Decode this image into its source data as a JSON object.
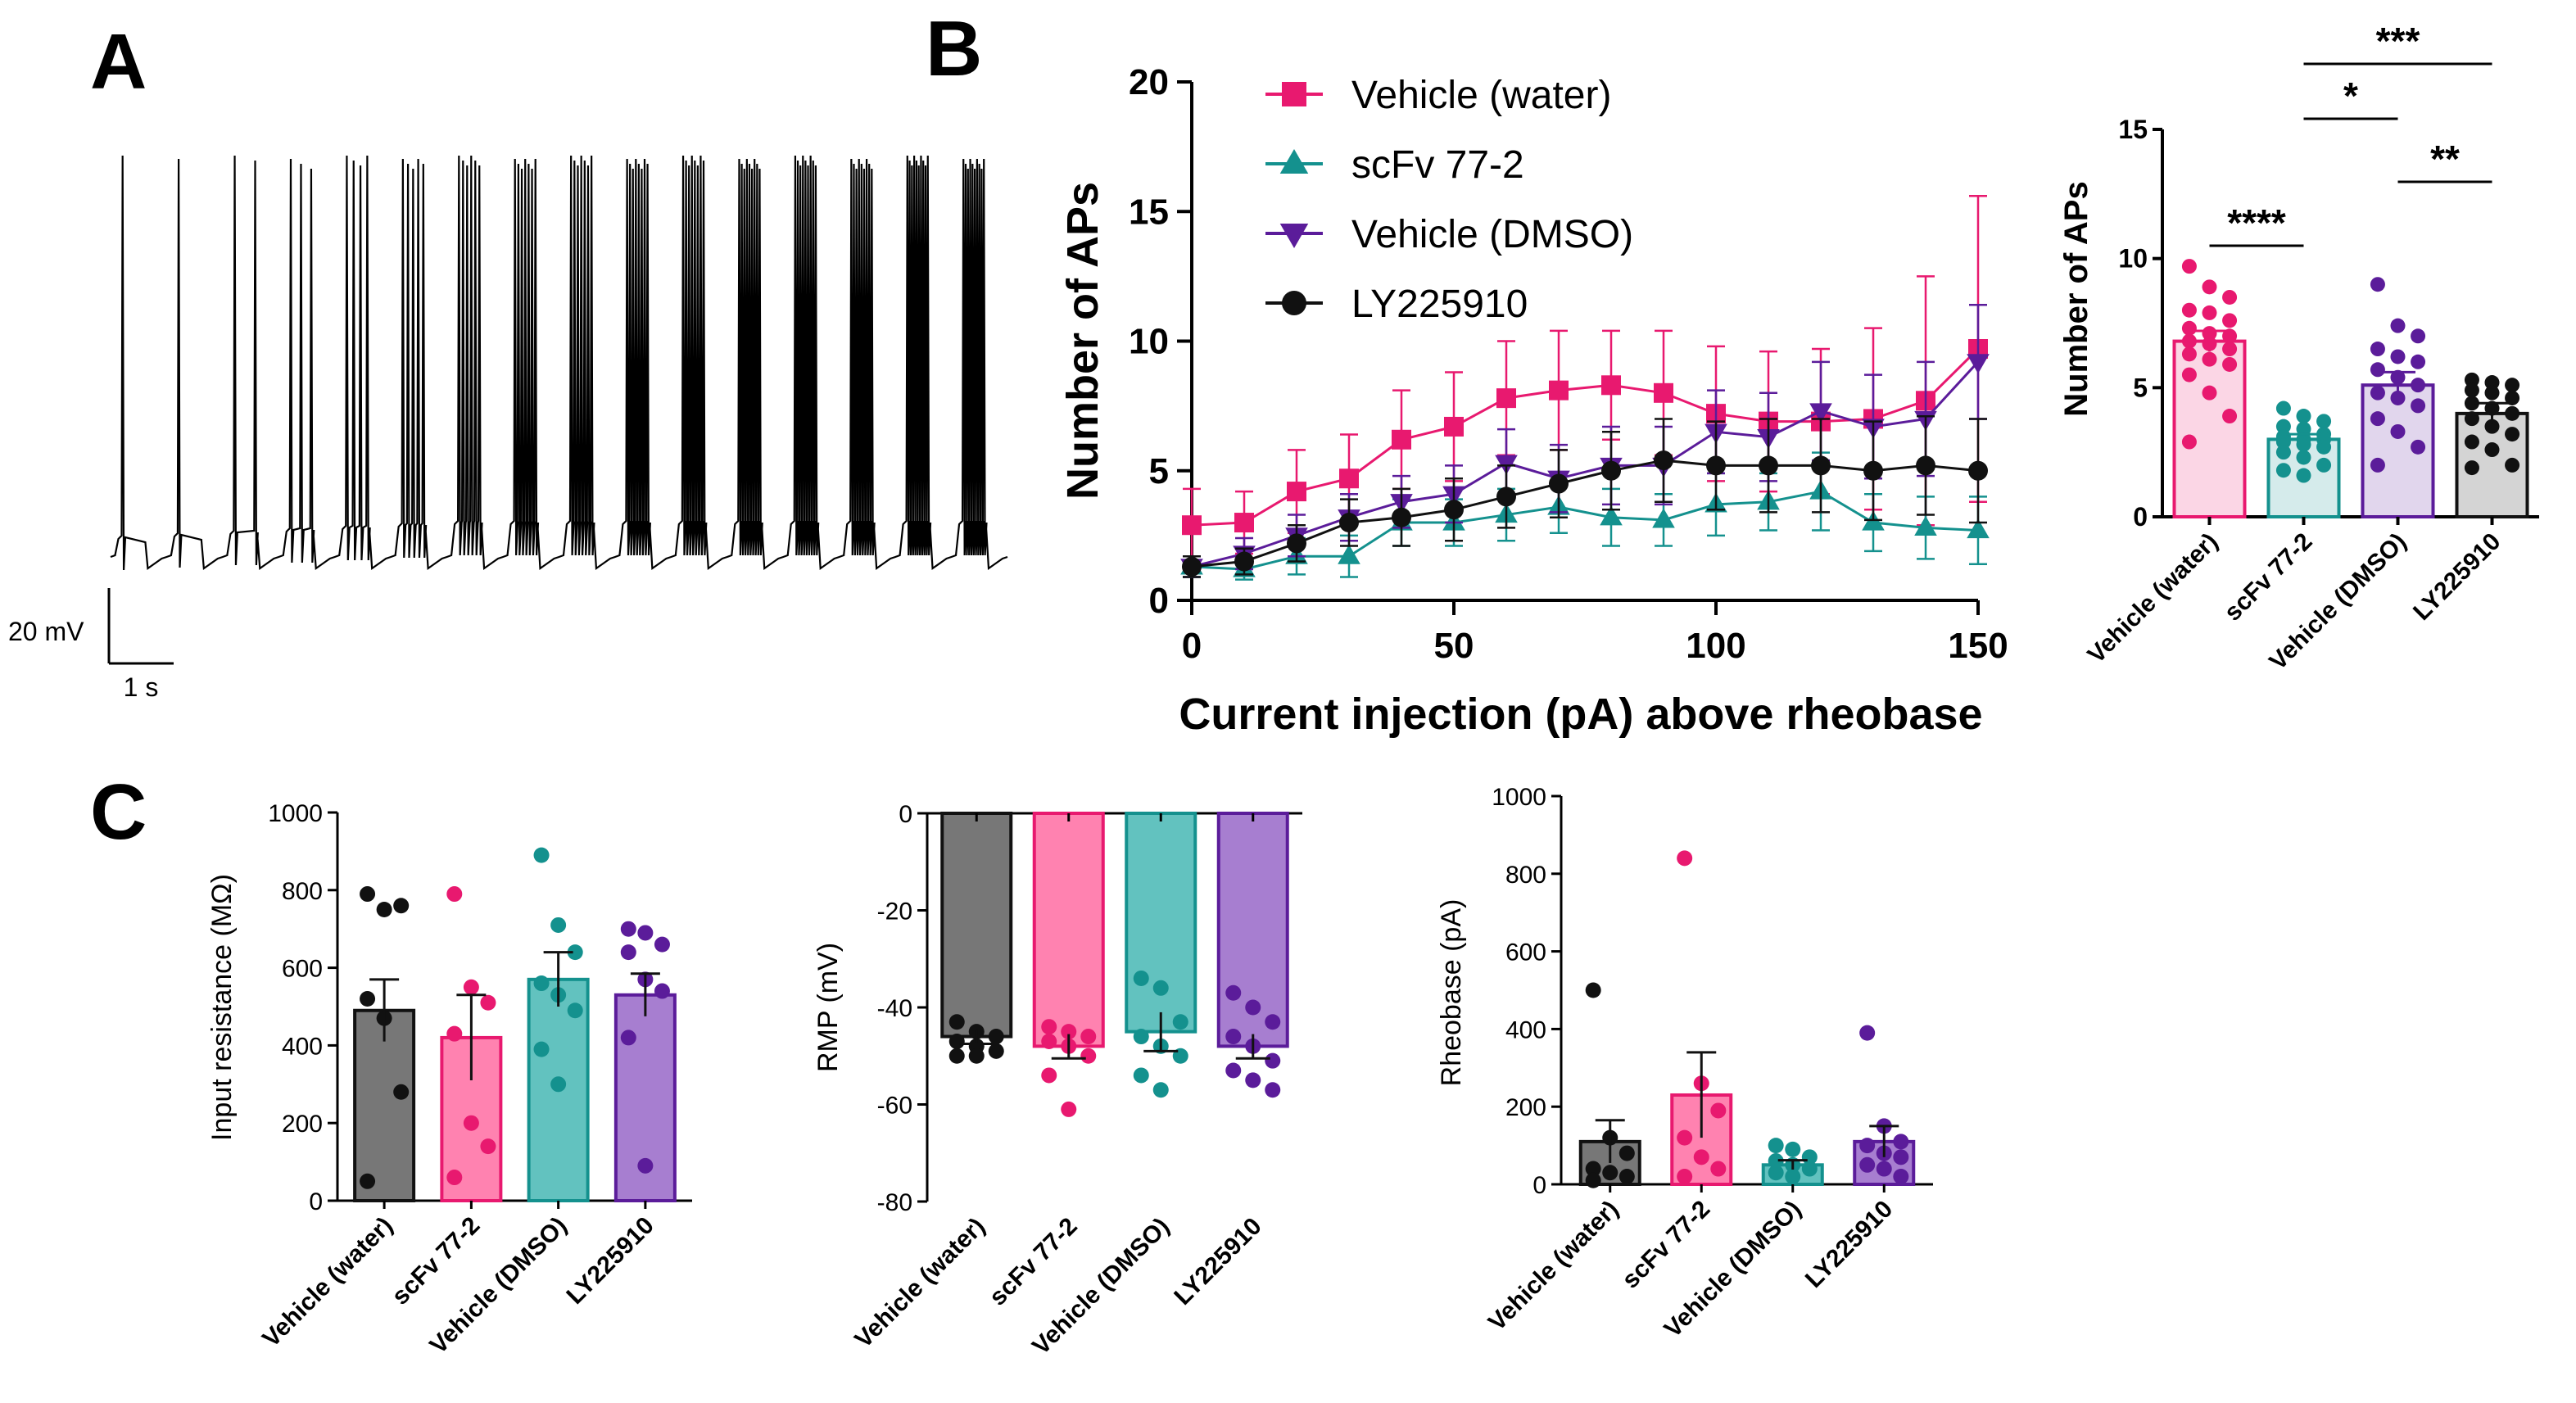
{
  "panels": {
    "a": "A",
    "b": "B",
    "c": "C"
  },
  "groups": [
    "Vehicle (water)",
    "scFv 77-2",
    "Vehicle (DMSO)",
    "LY225910"
  ],
  "group_colors": [
    "#e8196f",
    "#14918e",
    "#5b1c9a",
    "#111111"
  ],
  "chart_data": [
    {
      "id": "trace",
      "type": "line",
      "title": "",
      "scalebar": {
        "voltage_label": "20 mV",
        "time_label": "1 s"
      },
      "steps": [
        1,
        2,
        3,
        4,
        5,
        6,
        7,
        8,
        9,
        10,
        11,
        12,
        13,
        14,
        15,
        16
      ],
      "spikes_per_step": [
        1,
        1,
        2,
        3,
        4,
        5,
        6,
        7,
        7,
        8,
        8,
        9,
        9,
        9,
        10,
        10
      ]
    },
    {
      "id": "aps_line",
      "type": "line",
      "xlabel": "Current injection (pA) above rheobase",
      "ylabel": "Number of APs",
      "xlim": [
        0,
        150
      ],
      "ylim": [
        0,
        20
      ],
      "xticks": [
        0,
        50,
        100,
        150
      ],
      "yticks": [
        0,
        5,
        10,
        15,
        20
      ],
      "x": [
        0,
        10,
        20,
        30,
        40,
        50,
        60,
        70,
        80,
        90,
        100,
        110,
        120,
        130,
        140,
        150
      ],
      "series": [
        {
          "name": "Vehicle (water)",
          "color": "#e8196f",
          "marker": "square",
          "values": [
            2.9,
            3.0,
            4.2,
            4.7,
            6.2,
            6.7,
            7.8,
            8.1,
            8.3,
            8.0,
            7.2,
            6.9,
            6.9,
            7.0,
            7.7,
            9.7
          ],
          "errors": [
            1.4,
            1.2,
            1.6,
            1.7,
            1.9,
            2.1,
            2.2,
            2.3,
            2.1,
            2.4,
            2.6,
            2.7,
            2.8,
            3.5,
            4.8,
            5.9
          ]
        },
        {
          "name": "scFv 77-2",
          "color": "#14918e",
          "marker": "triangle-up",
          "values": [
            1.3,
            1.2,
            1.7,
            1.7,
            3.0,
            3.0,
            3.3,
            3.6,
            3.2,
            3.1,
            3.7,
            3.8,
            4.2,
            3.0,
            2.8,
            2.7
          ],
          "errors": [
            0.4,
            0.4,
            0.7,
            0.8,
            0.9,
            0.9,
            1.0,
            1.0,
            1.1,
            1.0,
            1.2,
            1.1,
            1.5,
            1.1,
            1.2,
            1.3
          ]
        },
        {
          "name": "Vehicle (DMSO)",
          "color": "#5b1c9a",
          "marker": "triangle-down",
          "values": [
            1.3,
            1.8,
            2.5,
            3.2,
            3.8,
            4.1,
            5.3,
            4.7,
            5.2,
            5.2,
            6.5,
            6.3,
            7.3,
            6.7,
            7.0,
            9.2
          ],
          "errors": [
            0.4,
            0.6,
            0.8,
            0.9,
            1.0,
            1.1,
            1.3,
            1.3,
            1.5,
            1.5,
            1.6,
            1.7,
            1.9,
            2.0,
            2.2,
            2.2
          ]
        },
        {
          "name": "LY225910",
          "color": "#111111",
          "marker": "circle",
          "values": [
            1.3,
            1.5,
            2.2,
            3.0,
            3.2,
            3.5,
            4.0,
            4.5,
            5.0,
            5.4,
            5.2,
            5.2,
            5.2,
            5.0,
            5.2,
            5.0
          ],
          "errors": [
            0.4,
            0.5,
            0.7,
            0.9,
            1.1,
            1.2,
            1.2,
            1.3,
            1.5,
            1.6,
            1.7,
            1.8,
            1.8,
            1.9,
            1.9,
            2.0
          ]
        }
      ]
    },
    {
      "id": "aps_bar",
      "type": "bar",
      "ylabel": "Number of APs",
      "ylim": [
        0,
        15
      ],
      "yticks": [
        0,
        5,
        10,
        15
      ],
      "categories": [
        "Vehicle (water)",
        "scFv 77-2",
        "Vehicle (DMSO)",
        "LY225910"
      ],
      "values": [
        6.8,
        3.0,
        5.1,
        4.0
      ],
      "errors": [
        0.4,
        0.2,
        0.5,
        0.4
      ],
      "points": [
        [
          9.7,
          8.9,
          8.5,
          8.0,
          7.9,
          7.6,
          7.3,
          7.1,
          7.0,
          6.8,
          6.7,
          6.5,
          6.3,
          6.1,
          5.9,
          5.5,
          4.8,
          3.9,
          2.9
        ],
        [
          4.2,
          3.9,
          3.7,
          3.5,
          3.4,
          3.2,
          3.1,
          3.0,
          3.0,
          2.9,
          2.8,
          2.7,
          2.5,
          2.3,
          2.0,
          1.8,
          1.6
        ],
        [
          9.0,
          7.4,
          7.0,
          6.5,
          6.2,
          6.0,
          5.7,
          5.4,
          5.1,
          4.8,
          4.6,
          4.3,
          3.8,
          3.3,
          2.7,
          2.0
        ],
        [
          5.3,
          5.2,
          5.1,
          4.9,
          4.8,
          4.6,
          4.4,
          4.2,
          4.0,
          3.8,
          3.5,
          3.2,
          2.9,
          2.6,
          2.0,
          1.9
        ]
      ],
      "significance": [
        {
          "label": "***",
          "from": 1,
          "to": 3
        },
        {
          "label": "*",
          "from": 1,
          "to": 2
        },
        {
          "label": "**",
          "from": 2,
          "to": 3
        },
        {
          "label": "****",
          "from": 0,
          "to": 1
        }
      ]
    },
    {
      "id": "input_resistance",
      "type": "bar",
      "ylabel": "Input resistance (MΩ)",
      "ylim": [
        0,
        1000
      ],
      "yticks": [
        0,
        200,
        400,
        600,
        800,
        1000
      ],
      "categories": [
        "Vehicle (water)",
        "scFv 77-2",
        "Vehicle (DMSO)",
        "LY225910"
      ],
      "bar_colors": [
        "#111111",
        "#e8196f",
        "#14918e",
        "#5b1c9a"
      ],
      "values": [
        490,
        420,
        570,
        530
      ],
      "errors": [
        80,
        110,
        70,
        55
      ],
      "points": [
        [
          790,
          750,
          760,
          520,
          470,
          280,
          50
        ],
        [
          790,
          550,
          510,
          430,
          200,
          140,
          60
        ],
        [
          890,
          710,
          640,
          560,
          530,
          490,
          390,
          300
        ],
        [
          700,
          690,
          660,
          640,
          570,
          540,
          420,
          90
        ]
      ]
    },
    {
      "id": "rmp",
      "type": "bar",
      "ylabel": "RMP (mV)",
      "ylim": [
        -80,
        0
      ],
      "yticks": [
        0,
        -20,
        -40,
        -60,
        -80
      ],
      "categories": [
        "Vehicle (water)",
        "scFv 77-2",
        "Vehicle (DMSO)",
        "LY225910"
      ],
      "bar_colors": [
        "#111111",
        "#e8196f",
        "#14918e",
        "#5b1c9a"
      ],
      "values": [
        -46,
        -48,
        -45,
        -48
      ],
      "errors": [
        1.5,
        2.5,
        4.0,
        2.5
      ],
      "points": [
        [
          -43,
          -45,
          -46,
          -47,
          -48,
          -49,
          -50,
          -50
        ],
        [
          -44,
          -45,
          -46,
          -47,
          -48,
          -50,
          -54,
          -61
        ],
        [
          -34,
          -36,
          -43,
          -46,
          -48,
          -50,
          -54,
          -57
        ],
        [
          -37,
          -40,
          -43,
          -46,
          -48,
          -51,
          -53,
          -55,
          -57
        ]
      ]
    },
    {
      "id": "rheobase",
      "type": "bar",
      "ylabel": "Rheobase (pA)",
      "ylim": [
        0,
        1000
      ],
      "yticks": [
        0,
        200,
        400,
        600,
        800,
        1000
      ],
      "categories": [
        "Vehicle (water)",
        "scFv 77-2",
        "Vehicle (DMSO)",
        "LY225910"
      ],
      "bar_colors": [
        "#111111",
        "#e8196f",
        "#14918e",
        "#5b1c9a"
      ],
      "values": [
        110,
        230,
        50,
        110
      ],
      "errors": [
        55,
        110,
        12,
        40
      ],
      "points": [
        [
          500,
          120,
          80,
          40,
          30,
          20,
          10
        ],
        [
          840,
          260,
          190,
          120,
          70,
          40,
          20
        ],
        [
          100,
          90,
          70,
          60,
          50,
          40,
          30,
          20
        ],
        [
          390,
          150,
          110,
          100,
          80,
          70,
          50,
          40,
          20
        ]
      ]
    }
  ]
}
